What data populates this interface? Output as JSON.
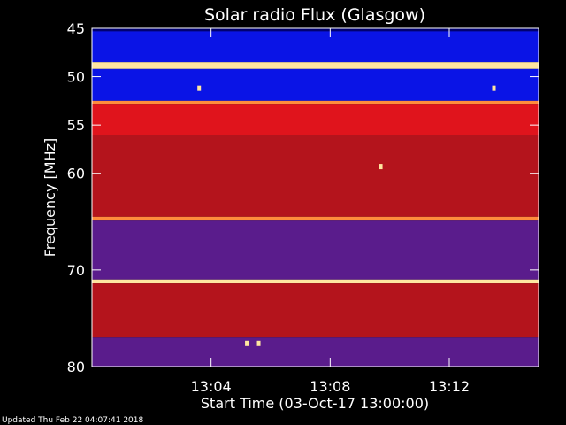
{
  "chart_data": {
    "type": "heatmap",
    "title": "Solar radio Flux (Glasgow)",
    "xlabel": "Start Time (03-Oct-17 13:00:00)",
    "ylabel": "Frequency [MHz]",
    "x_unit": "minutes after 13:00:00",
    "xlim": [
      0.0,
      15.0
    ],
    "ylim": [
      45,
      80
    ],
    "y_inverted": true,
    "x_ticks": [
      {
        "value": 4,
        "label": "13:04"
      },
      {
        "value": 8,
        "label": "13:08"
      },
      {
        "value": 12,
        "label": "13:12"
      }
    ],
    "y_ticks": [
      {
        "value": 45,
        "label": "45"
      },
      {
        "value": 50,
        "label": "50"
      },
      {
        "value": 55,
        "label": "55"
      },
      {
        "value": 60,
        "label": "60"
      },
      {
        "value": 70,
        "label": "70"
      },
      {
        "value": 80,
        "label": "80"
      }
    ],
    "frequency_bands": [
      {
        "from": 45.0,
        "to": 45.3,
        "level": "cold"
      },
      {
        "from": 45.3,
        "to": 48.5,
        "level": "low"
      },
      {
        "from": 48.5,
        "to": 49.2,
        "level": "saturated"
      },
      {
        "from": 49.2,
        "to": 52.5,
        "level": "low"
      },
      {
        "from": 52.5,
        "to": 52.9,
        "level": "hot"
      },
      {
        "from": 52.9,
        "to": 56.0,
        "level": "high"
      },
      {
        "from": 56.0,
        "to": 64.5,
        "level": "elevated"
      },
      {
        "from": 64.5,
        "to": 64.9,
        "level": "hot"
      },
      {
        "from": 64.9,
        "to": 71.0,
        "level": "moderate"
      },
      {
        "from": 71.0,
        "to": 71.4,
        "level": "saturated"
      },
      {
        "from": 71.4,
        "to": 77.0,
        "level": "elevated"
      },
      {
        "from": 77.0,
        "to": 80.0,
        "level": "moderate"
      }
    ],
    "bright_spots": [
      {
        "t": 3.6,
        "f": 51.2
      },
      {
        "t": 9.7,
        "f": 59.3
      },
      {
        "t": 13.5,
        "f": 51.2
      },
      {
        "t": 5.2,
        "f": 77.6
      },
      {
        "t": 5.6,
        "f": 77.6
      }
    ],
    "colors": {
      "cold": "#000070",
      "low": "#0a14e6",
      "moderate": "#5a1c8c",
      "elevated": "#b4141c",
      "high": "#e0141c",
      "hot": "#ff8c3c",
      "saturated": "#ffe6a0",
      "axis": "#ffffff",
      "background": "#000000"
    }
  },
  "footer": {
    "updated_text": "Updated Thu Feb 22 04:07:41 2018"
  }
}
